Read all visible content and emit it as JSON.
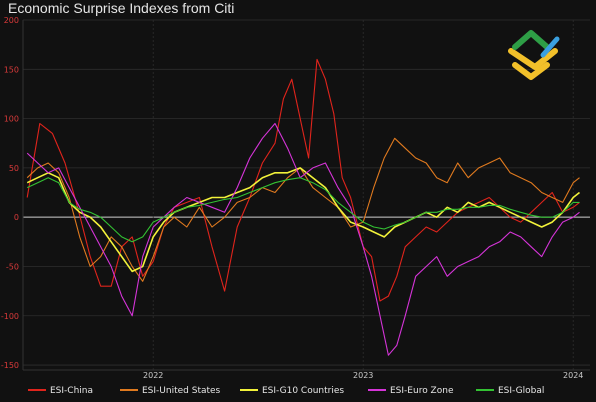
{
  "chart_data": {
    "type": "line",
    "title": "Economic Surprise Indexes from Citi",
    "xlabel": "",
    "ylabel": "",
    "ylim": [
      -155,
      200
    ],
    "yticks": [
      -150,
      -100,
      -50,
      0,
      50,
      100,
      150,
      200
    ],
    "xlim": [
      2021.38,
      2024.08
    ],
    "xticks": [
      {
        "label": "2022",
        "x": 2022.0
      },
      {
        "label": "2023",
        "x": 2023.0
      },
      {
        "label": "2024",
        "x": 2024.0
      }
    ],
    "grid": true,
    "legend_position": "bottom",
    "background": "#111111",
    "series": [
      {
        "name": "ESI-China",
        "color": "#e0241c",
        "x": [
          2021.4,
          2021.46,
          2021.52,
          2021.58,
          2021.64,
          2021.7,
          2021.75,
          2021.8,
          2021.85,
          2021.9,
          2021.95,
          2022.0,
          2022.05,
          2022.1,
          2022.16,
          2022.22,
          2022.28,
          2022.34,
          2022.4,
          2022.46,
          2022.52,
          2022.58,
          2022.62,
          2022.66,
          2022.7,
          2022.74,
          2022.78,
          2022.82,
          2022.86,
          2022.9,
          2022.94,
          2023.0,
          2023.04,
          2023.08,
          2023.12,
          2023.16,
          2023.2,
          2023.25,
          2023.3,
          2023.35,
          2023.4,
          2023.45,
          2023.5,
          2023.55,
          2023.6,
          2023.65,
          2023.7,
          2023.75,
          2023.8,
          2023.85,
          2023.9,
          2023.95,
          2024.0,
          2024.03
        ],
        "values": [
          20,
          95,
          85,
          55,
          10,
          -40,
          -70,
          -70,
          -30,
          -20,
          -60,
          -45,
          -10,
          10,
          15,
          20,
          -30,
          -75,
          -10,
          20,
          55,
          75,
          120,
          140,
          100,
          60,
          160,
          140,
          105,
          40,
          20,
          -30,
          -40,
          -85,
          -80,
          -60,
          -30,
          -20,
          -10,
          -15,
          -5,
          5,
          10,
          15,
          20,
          10,
          0,
          -5,
          5,
          15,
          25,
          5,
          10,
          15
        ]
      },
      {
        "name": "ESI-United States",
        "color": "#e07a1f",
        "x": [
          2021.4,
          2021.45,
          2021.5,
          2021.55,
          2021.6,
          2021.65,
          2021.7,
          2021.75,
          2021.8,
          2021.85,
          2021.9,
          2021.95,
          2022.0,
          2022.05,
          2022.1,
          2022.16,
          2022.22,
          2022.28,
          2022.34,
          2022.4,
          2022.46,
          2022.52,
          2022.58,
          2022.64,
          2022.7,
          2022.76,
          2022.82,
          2022.88,
          2022.94,
          2023.0,
          2023.05,
          2023.1,
          2023.15,
          2023.2,
          2023.25,
          2023.3,
          2023.35,
          2023.4,
          2023.45,
          2023.5,
          2023.55,
          2023.6,
          2023.65,
          2023.7,
          2023.75,
          2023.8,
          2023.85,
          2023.9,
          2023.95,
          2024.0,
          2024.03
        ],
        "values": [
          40,
          50,
          55,
          45,
          20,
          -20,
          -50,
          -40,
          -20,
          -30,
          -50,
          -65,
          -40,
          -10,
          0,
          -10,
          10,
          -10,
          0,
          15,
          20,
          30,
          25,
          40,
          50,
          30,
          20,
          10,
          -10,
          -5,
          30,
          60,
          80,
          70,
          60,
          55,
          40,
          35,
          55,
          40,
          50,
          55,
          60,
          45,
          40,
          35,
          25,
          20,
          15,
          35,
          40
        ]
      },
      {
        "name": "ESI-G10 Countries",
        "color": "#f2f23a",
        "x": [
          2021.4,
          2021.45,
          2021.5,
          2021.55,
          2021.6,
          2021.65,
          2021.7,
          2021.75,
          2021.8,
          2021.85,
          2021.9,
          2021.95,
          2022.0,
          2022.05,
          2022.1,
          2022.16,
          2022.22,
          2022.28,
          2022.34,
          2022.4,
          2022.46,
          2022.52,
          2022.58,
          2022.64,
          2022.7,
          2022.76,
          2022.82,
          2022.88,
          2022.94,
          2023.0,
          2023.05,
          2023.1,
          2023.15,
          2023.2,
          2023.25,
          2023.3,
          2023.35,
          2023.4,
          2023.45,
          2023.5,
          2023.55,
          2023.6,
          2023.65,
          2023.7,
          2023.75,
          2023.8,
          2023.85,
          2023.9,
          2023.95,
          2024.0,
          2024.03
        ],
        "values": [
          35,
          40,
          45,
          40,
          15,
          5,
          0,
          -10,
          -25,
          -40,
          -55,
          -50,
          -20,
          -5,
          5,
          10,
          15,
          20,
          20,
          25,
          30,
          40,
          45,
          45,
          50,
          40,
          30,
          10,
          -5,
          -10,
          -15,
          -20,
          -10,
          -5,
          0,
          5,
          0,
          10,
          5,
          15,
          10,
          15,
          10,
          5,
          0,
          -5,
          -10,
          -5,
          5,
          20,
          25
        ]
      },
      {
        "name": "ESI-Euro Zone",
        "color": "#d534d8",
        "x": [
          2021.4,
          2021.45,
          2021.5,
          2021.55,
          2021.6,
          2021.65,
          2021.7,
          2021.75,
          2021.8,
          2021.85,
          2021.9,
          2021.95,
          2022.0,
          2022.05,
          2022.1,
          2022.16,
          2022.22,
          2022.28,
          2022.34,
          2022.4,
          2022.46,
          2022.52,
          2022.58,
          2022.64,
          2022.7,
          2022.76,
          2022.82,
          2022.88,
          2022.94,
          2023.0,
          2023.04,
          2023.08,
          2023.12,
          2023.16,
          2023.2,
          2023.25,
          2023.3,
          2023.35,
          2023.4,
          2023.45,
          2023.5,
          2023.55,
          2023.6,
          2023.65,
          2023.7,
          2023.75,
          2023.8,
          2023.85,
          2023.9,
          2023.95,
          2024.0,
          2024.03
        ],
        "values": [
          65,
          55,
          45,
          50,
          30,
          10,
          -10,
          -30,
          -50,
          -80,
          -100,
          -40,
          -10,
          0,
          10,
          20,
          15,
          10,
          5,
          30,
          60,
          80,
          95,
          70,
          40,
          50,
          55,
          30,
          10,
          -30,
          -60,
          -100,
          -140,
          -130,
          -100,
          -60,
          -50,
          -40,
          -60,
          -50,
          -45,
          -40,
          -30,
          -25,
          -15,
          -20,
          -30,
          -40,
          -20,
          -5,
          0,
          5
        ]
      },
      {
        "name": "ESI-Global",
        "color": "#33c233",
        "x": [
          2021.4,
          2021.45,
          2021.5,
          2021.55,
          2021.6,
          2021.65,
          2021.7,
          2021.75,
          2021.8,
          2021.85,
          2021.9,
          2021.95,
          2022.0,
          2022.05,
          2022.1,
          2022.16,
          2022.22,
          2022.28,
          2022.34,
          2022.4,
          2022.46,
          2022.52,
          2022.58,
          2022.64,
          2022.7,
          2022.76,
          2022.82,
          2022.88,
          2022.94,
          2023.0,
          2023.05,
          2023.1,
          2023.15,
          2023.2,
          2023.25,
          2023.3,
          2023.35,
          2023.4,
          2023.45,
          2023.5,
          2023.55,
          2023.6,
          2023.65,
          2023.7,
          2023.75,
          2023.8,
          2023.85,
          2023.9,
          2023.95,
          2024.0,
          2024.03
        ],
        "values": [
          30,
          35,
          40,
          35,
          15,
          8,
          5,
          0,
          -10,
          -20,
          -25,
          -20,
          -5,
          0,
          5,
          10,
          12,
          15,
          18,
          20,
          25,
          30,
          35,
          38,
          40,
          35,
          28,
          15,
          5,
          -5,
          -10,
          -12,
          -8,
          -5,
          0,
          5,
          5,
          8,
          8,
          10,
          10,
          12,
          12,
          8,
          5,
          2,
          0,
          0,
          5,
          15,
          15
        ]
      }
    ]
  }
}
